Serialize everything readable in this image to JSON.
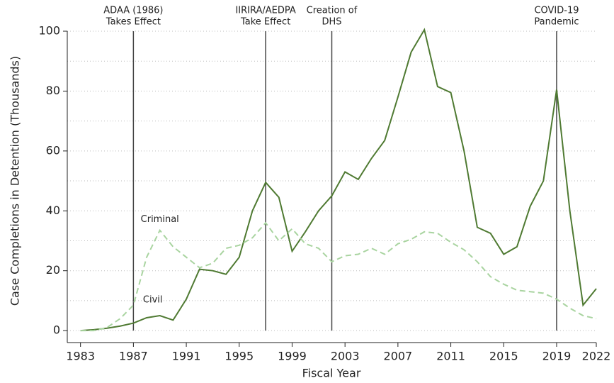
{
  "chart_data": {
    "type": "line",
    "xlabel": "Fiscal Year",
    "ylabel": "Case Completions in Detention (Thousands)",
    "x": [
      1983,
      1984,
      1985,
      1986,
      1987,
      1988,
      1989,
      1990,
      1991,
      1992,
      1993,
      1994,
      1995,
      1996,
      1997,
      1998,
      1999,
      2000,
      2001,
      2002,
      2003,
      2004,
      2005,
      2006,
      2007,
      2008,
      2009,
      2010,
      2011,
      2012,
      2013,
      2014,
      2015,
      2016,
      2017,
      2018,
      2019,
      2020,
      2021,
      2022
    ],
    "series": [
      {
        "name": "Civil",
        "color": "#4f7a32",
        "dashed": false,
        "values": [
          0,
          0.3,
          0.8,
          1.5,
          2.5,
          4.3,
          5,
          3.5,
          10.5,
          20.5,
          20,
          18.8,
          24.5,
          40,
          49.5,
          44.5,
          26.5,
          33,
          40,
          45,
          53,
          50.5,
          57.5,
          63.5,
          78,
          93,
          100.5,
          81.5,
          79.5,
          60,
          34.5,
          32.5,
          25.5,
          28,
          41.5,
          50,
          80.5,
          40,
          8.5,
          14
        ]
      },
      {
        "name": "Criminal",
        "color": "#a9d4a0",
        "dashed": true,
        "values": [
          0,
          0,
          1,
          4,
          8.5,
          24.5,
          33.5,
          28,
          24.5,
          21,
          22.5,
          27.5,
          28.5,
          31,
          36,
          30,
          34,
          29,
          27.5,
          23,
          25,
          25.5,
          27.5,
          25.5,
          29,
          30.5,
          33,
          32.5,
          29.5,
          27,
          23,
          18,
          15.5,
          13.5,
          13,
          12.5,
          10.5,
          7.5,
          5,
          4
        ]
      }
    ],
    "xlim": [
      1982,
      2022
    ],
    "xticks": [
      1983,
      1987,
      1991,
      1995,
      1999,
      2003,
      2007,
      2011,
      2015,
      2019,
      2022
    ],
    "ylim": [
      -4,
      100
    ],
    "yticks": [
      0,
      20,
      40,
      60,
      80,
      100
    ],
    "minor_grid_yticks": [
      10,
      30,
      50,
      70,
      90
    ],
    "grid": true,
    "annotations": [
      {
        "x": 1987,
        "text": [
          "ADAA (1986)",
          "Takes Effect"
        ]
      },
      {
        "x": 1997,
        "text": [
          "IIRIRA/AEDPA",
          "Take Effect"
        ]
      },
      {
        "x": 2002,
        "text": [
          "Creation of",
          "DHS"
        ]
      },
      {
        "x": 2019,
        "text": [
          "COVID-19",
          "Pandemic"
        ]
      }
    ]
  }
}
